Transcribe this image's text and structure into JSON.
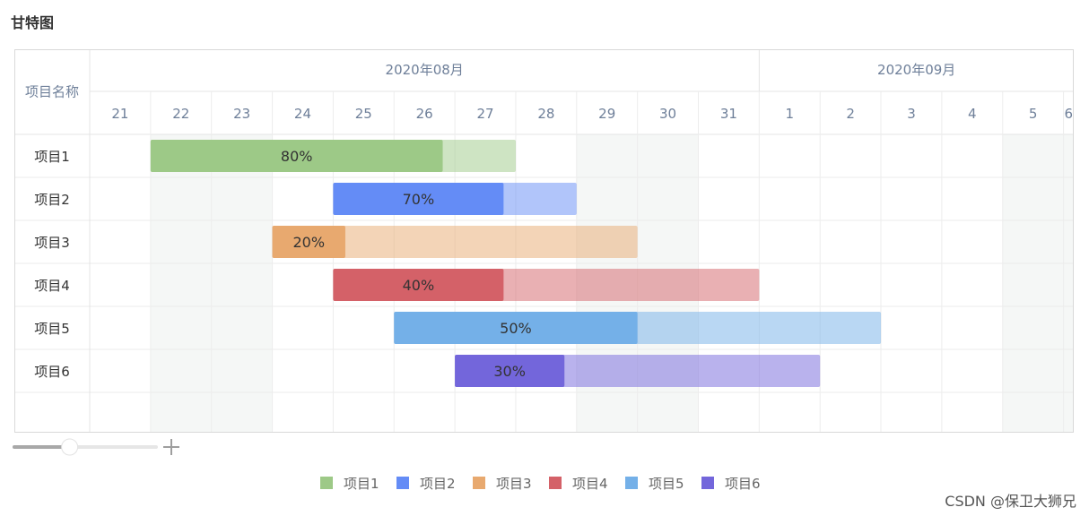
{
  "header": {
    "title": "甘特图"
  },
  "watermark": "CSDN @保卫大狮兄",
  "grid": {
    "row_header_label": "项目名称",
    "months": [
      {
        "label": "2020年08月",
        "day_count": 11
      },
      {
        "label": "2020年09月",
        "day_count": 6
      }
    ],
    "days": [
      "21",
      "22",
      "23",
      "24",
      "25",
      "26",
      "27",
      "28",
      "29",
      "30",
      "31",
      "1",
      "2",
      "3",
      "4",
      "5",
      "6"
    ],
    "weekend_day_indices": [
      1,
      2,
      8,
      9,
      15,
      16
    ]
  },
  "chart_data": {
    "type": "gantt",
    "title": "甘特图",
    "x_range": [
      "2020-08-21",
      "2020-09-06"
    ],
    "tasks": [
      {
        "name": "项目1",
        "start": "2020-08-22",
        "end": "2020-08-27",
        "progress": 80,
        "progress_label": "80%",
        "color": "#9dc987"
      },
      {
        "name": "项目2",
        "start": "2020-08-25",
        "end": "2020-08-28",
        "progress": 70,
        "progress_label": "70%",
        "color": "#648cf6"
      },
      {
        "name": "项目3",
        "start": "2020-08-24",
        "end": "2020-08-29",
        "progress": 20,
        "progress_label": "20%",
        "color": "#e8a96f"
      },
      {
        "name": "项目4",
        "start": "2020-08-25",
        "end": "2020-08-31",
        "progress": 40,
        "progress_label": "40%",
        "color": "#d46168"
      },
      {
        "name": "项目5",
        "start": "2020-08-26",
        "end": "2020-09-02",
        "progress": 50,
        "progress_label": "50%",
        "color": "#74b0e8"
      },
      {
        "name": "项目6",
        "start": "2020-08-27",
        "end": "2020-09-01",
        "progress": 30,
        "progress_label": "30%",
        "color": "#7366db"
      }
    ],
    "legend": {
      "position": "bottom-center",
      "items": [
        "项目1",
        "项目2",
        "项目3",
        "项目4",
        "项目5",
        "项目6"
      ]
    },
    "grid": true
  },
  "zoom_slider": {
    "level": 0.39
  },
  "icons": {
    "zoom_in": "plus-icon"
  }
}
